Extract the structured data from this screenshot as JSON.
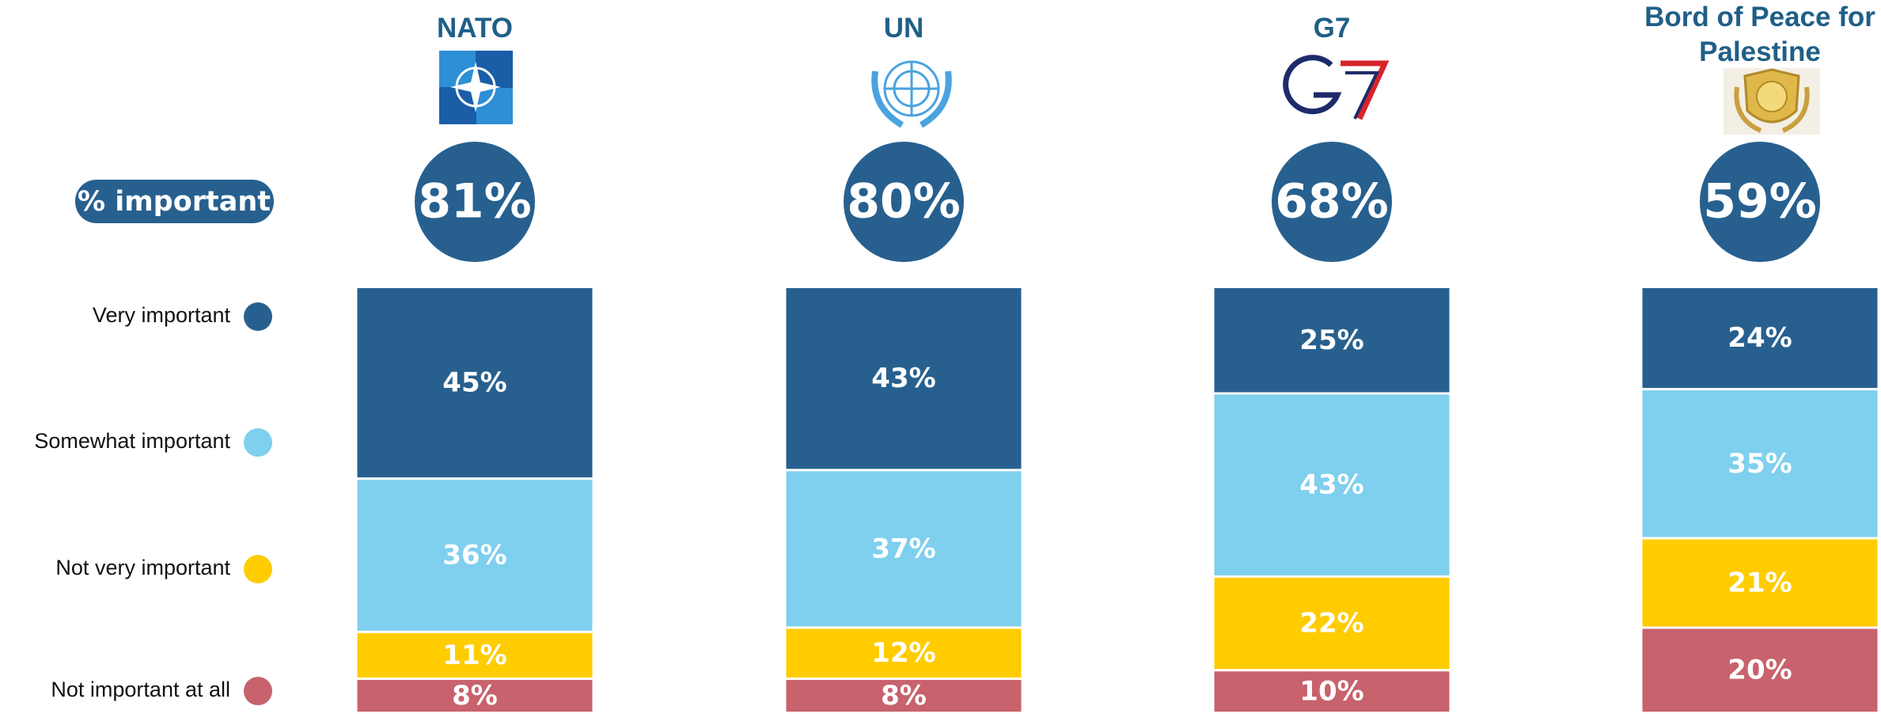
{
  "chart_data": {
    "type": "stacked-bar",
    "categories": [
      "NATO",
      "UN",
      "G7",
      "Bord of Peace for Palestine"
    ],
    "ylim": [
      0,
      100
    ],
    "series": [
      {
        "name": "Very important",
        "color": "#27608f",
        "values": [
          45,
          43,
          25,
          24
        ],
        "value_labels": [
          "45%",
          "43%",
          "25%",
          "24%"
        ]
      },
      {
        "name": "Somewhat important",
        "color": "#7fcfee",
        "values": [
          36,
          37,
          43,
          35
        ],
        "value_labels": [
          "36%",
          "37%",
          "43%",
          "35%"
        ]
      },
      {
        "name": "Not very important",
        "color": "#ffcc00",
        "values": [
          11,
          12,
          22,
          21
        ],
        "value_labels": [
          "11%",
          "12%",
          "22%",
          "21%"
        ]
      },
      {
        "name": "Not important at all",
        "color": "#c8626c",
        "values": [
          8,
          8,
          10,
          20
        ],
        "value_labels": [
          "8%",
          "8%",
          "10%",
          "20%"
        ]
      }
    ],
    "summary": {
      "label": "% important",
      "color": "#27608f",
      "values": [
        81,
        80,
        68,
        59
      ],
      "value_labels": [
        "81%",
        "80%",
        "68%",
        "59%"
      ]
    }
  }
}
